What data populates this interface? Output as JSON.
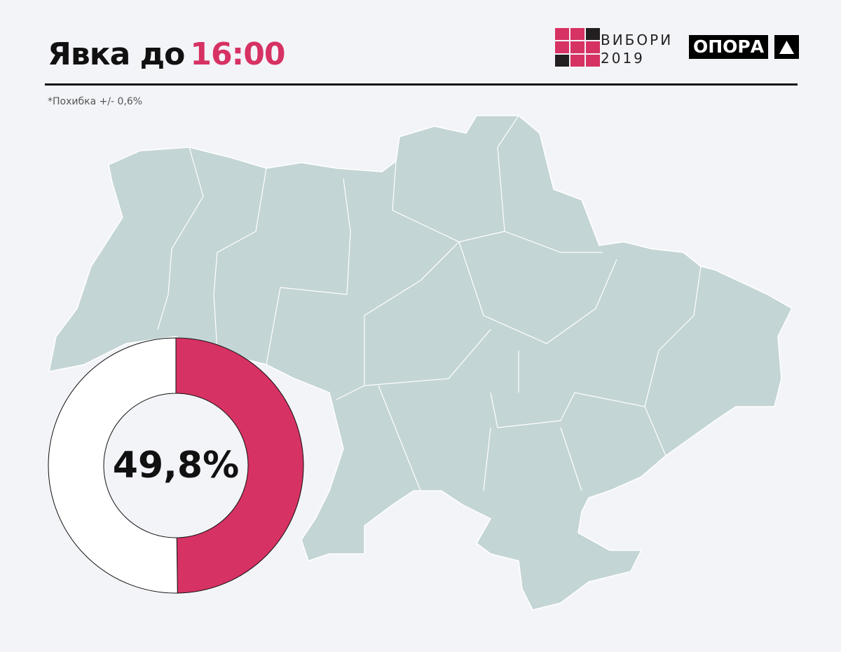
{
  "header": {
    "title": "Явка до",
    "time": "16:00",
    "note": "*Похибка +/- 0,6%"
  },
  "logos": {
    "vybory_line1": "ВИБОРИ",
    "vybory_line2": "2019",
    "opora": "ОПОРА"
  },
  "colors": {
    "accent": "#d63263",
    "map": "#c3d5d4",
    "background": "#f3f4f8",
    "remainder": "#ffffff"
  },
  "chart_data": {
    "type": "pie",
    "style": "donut",
    "values": [
      49.8,
      50.2
    ],
    "categories": [
      "turnout",
      "remainder"
    ],
    "label": "49,8%"
  }
}
